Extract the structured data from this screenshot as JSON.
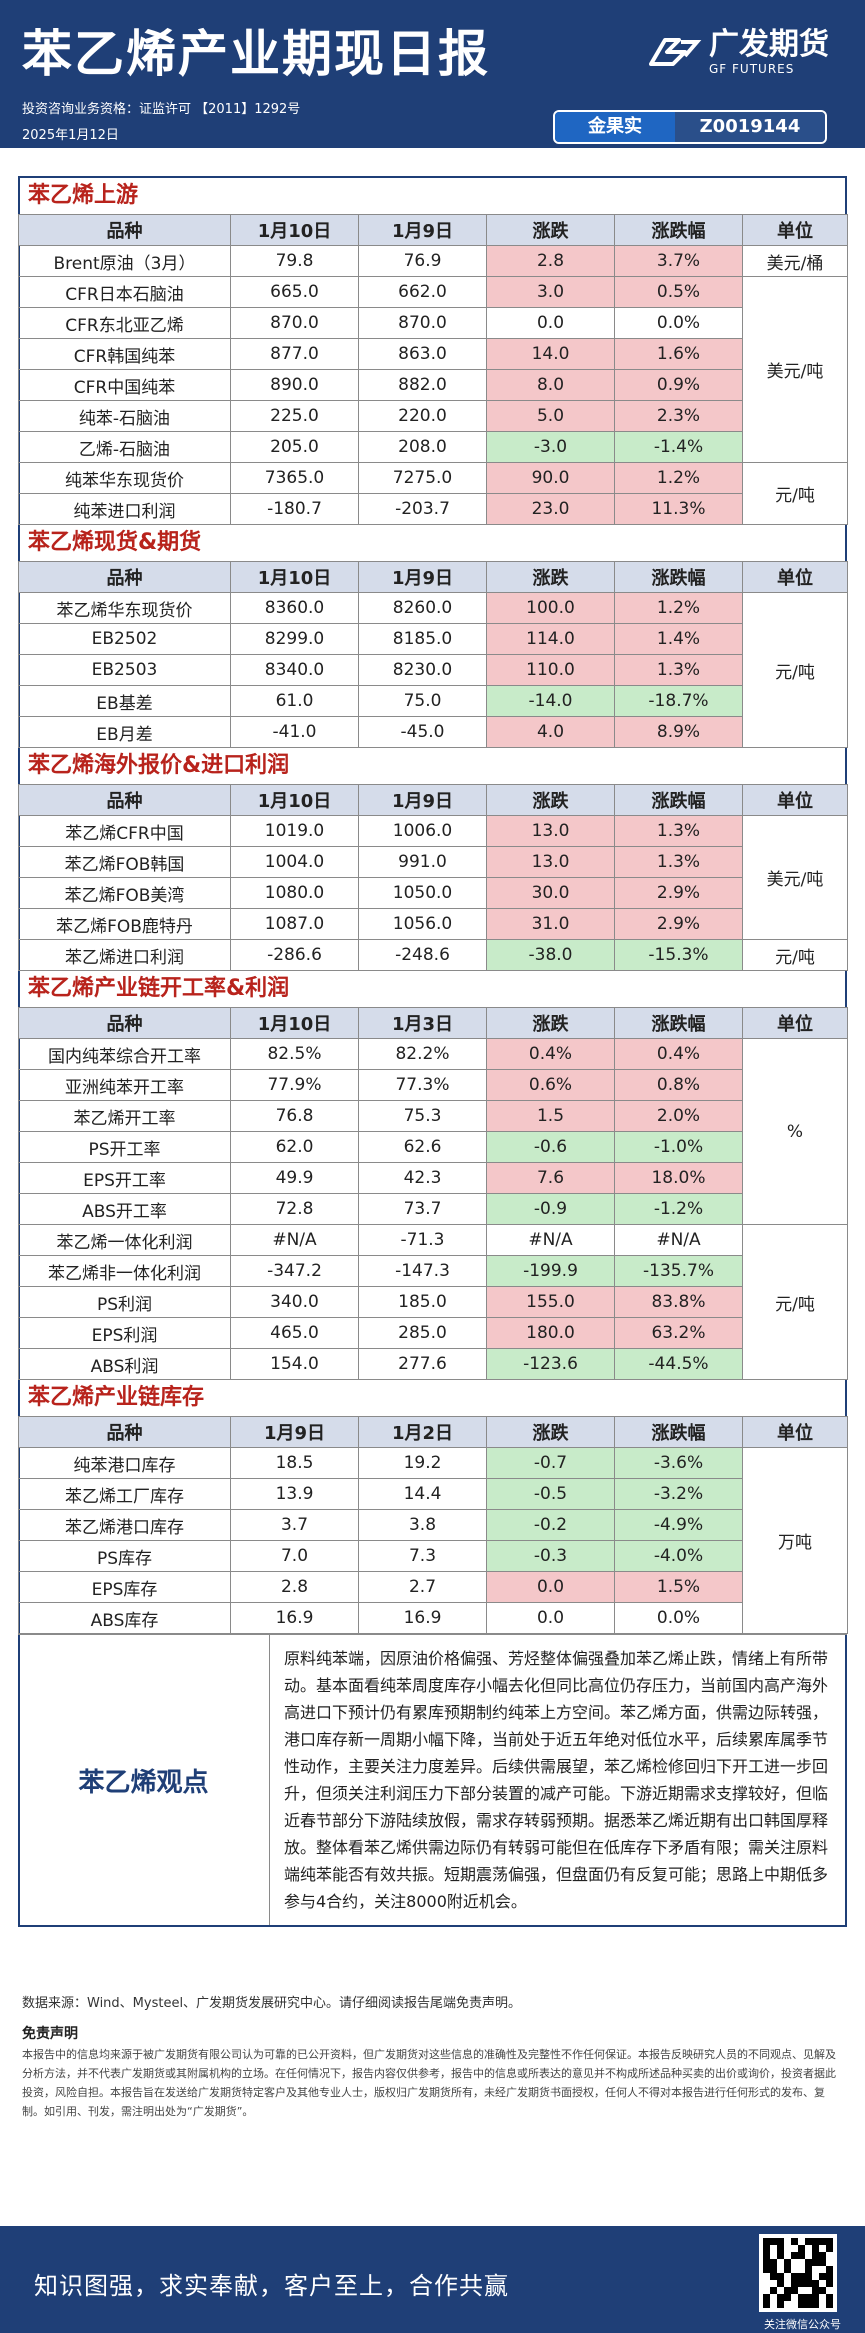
{
  "header": {
    "title": "苯乙烯产业期现日报",
    "license": "投资咨询业务资格：证监许可 【2011】1292号",
    "date": "2025年1月12日",
    "logo_name": "广发期货",
    "logo_en": "GF FUTURES",
    "analyst_name": "金果实",
    "analyst_no": "Z0019144"
  },
  "colors": {
    "brand": "#1f3f77",
    "accent_red": "#b8231c",
    "pos": "#f4c7c9",
    "neg": "#c8ebc9"
  },
  "sections": [
    {
      "title": "苯乙烯上游",
      "headers": [
        "品种",
        "1月10日",
        "1月9日",
        "涨跌",
        "涨跌幅",
        "单位"
      ],
      "rows": [
        {
          "name": "Brent原油（3月）",
          "c1": "79.8",
          "c2": "76.9",
          "chg": "2.8",
          "pct": "3.7%",
          "chg_t": "pos",
          "pct_t": "pos",
          "unit": "美元/桶",
          "span": 1
        },
        {
          "name": "CFR日本石脑油",
          "c1": "665.0",
          "c2": "662.0",
          "chg": "3.0",
          "pct": "0.5%",
          "chg_t": "pos",
          "pct_t": "pos",
          "unit": "美元/吨",
          "span": 6
        },
        {
          "name": "CFR东北亚乙烯",
          "c1": "870.0",
          "c2": "870.0",
          "chg": "0.0",
          "pct": "0.0%",
          "chg_t": "zero",
          "pct_t": "zero"
        },
        {
          "name": "CFR韩国纯苯",
          "c1": "877.0",
          "c2": "863.0",
          "chg": "14.0",
          "pct": "1.6%",
          "chg_t": "pos",
          "pct_t": "pos"
        },
        {
          "name": "CFR中国纯苯",
          "c1": "890.0",
          "c2": "882.0",
          "chg": "8.0",
          "pct": "0.9%",
          "chg_t": "pos",
          "pct_t": "pos"
        },
        {
          "name": "纯苯-石脑油",
          "c1": "225.0",
          "c2": "220.0",
          "chg": "5.0",
          "pct": "2.3%",
          "chg_t": "pos",
          "pct_t": "pos"
        },
        {
          "name": "乙烯-石脑油",
          "c1": "205.0",
          "c2": "208.0",
          "chg": "-3.0",
          "pct": "-1.4%",
          "chg_t": "neg",
          "pct_t": "neg"
        },
        {
          "name": "纯苯华东现货价",
          "c1": "7365.0",
          "c2": "7275.0",
          "chg": "90.0",
          "pct": "1.2%",
          "chg_t": "pos",
          "pct_t": "pos",
          "unit": "元/吨",
          "span": 2
        },
        {
          "name": "纯苯进口利润",
          "c1": "-180.7",
          "c2": "-203.7",
          "chg": "23.0",
          "pct": "11.3%",
          "chg_t": "pos",
          "pct_t": "pos"
        }
      ]
    },
    {
      "title": "苯乙烯现货&期货",
      "headers": [
        "品种",
        "1月10日",
        "1月9日",
        "涨跌",
        "涨跌幅",
        "单位"
      ],
      "rows": [
        {
          "name": "苯乙烯华东现货价",
          "c1": "8360.0",
          "c2": "8260.0",
          "chg": "100.0",
          "pct": "1.2%",
          "chg_t": "pos",
          "pct_t": "pos",
          "unit": "元/吨",
          "span": 5
        },
        {
          "name": "EB2502",
          "c1": "8299.0",
          "c2": "8185.0",
          "chg": "114.0",
          "pct": "1.4%",
          "chg_t": "pos",
          "pct_t": "pos"
        },
        {
          "name": "EB2503",
          "c1": "8340.0",
          "c2": "8230.0",
          "chg": "110.0",
          "pct": "1.3%",
          "chg_t": "pos",
          "pct_t": "pos"
        },
        {
          "name": "EB基差",
          "c1": "61.0",
          "c2": "75.0",
          "chg": "-14.0",
          "pct": "-18.7%",
          "chg_t": "neg",
          "pct_t": "neg"
        },
        {
          "name": "EB月差",
          "c1": "-41.0",
          "c2": "-45.0",
          "chg": "4.0",
          "pct": "8.9%",
          "chg_t": "pos",
          "pct_t": "pos"
        }
      ]
    },
    {
      "title": "苯乙烯海外报价&进口利润",
      "headers": [
        "品种",
        "1月10日",
        "1月9日",
        "涨跌",
        "涨跌幅",
        "单位"
      ],
      "rows": [
        {
          "name": "苯乙烯CFR中国",
          "c1": "1019.0",
          "c2": "1006.0",
          "chg": "13.0",
          "pct": "1.3%",
          "chg_t": "pos",
          "pct_t": "pos",
          "unit": "美元/吨",
          "span": 4
        },
        {
          "name": "苯乙烯FOB韩国",
          "c1": "1004.0",
          "c2": "991.0",
          "chg": "13.0",
          "pct": "1.3%",
          "chg_t": "pos",
          "pct_t": "pos"
        },
        {
          "name": "苯乙烯FOB美湾",
          "c1": "1080.0",
          "c2": "1050.0",
          "chg": "30.0",
          "pct": "2.9%",
          "chg_t": "pos",
          "pct_t": "pos"
        },
        {
          "name": "苯乙烯FOB鹿特丹",
          "c1": "1087.0",
          "c2": "1056.0",
          "chg": "31.0",
          "pct": "2.9%",
          "chg_t": "pos",
          "pct_t": "pos"
        },
        {
          "name": "苯乙烯进口利润",
          "c1": "-286.6",
          "c2": "-248.6",
          "chg": "-38.0",
          "pct": "-15.3%",
          "chg_t": "neg",
          "pct_t": "neg",
          "unit": "元/吨",
          "span": 1
        }
      ]
    },
    {
      "title": "苯乙烯产业链开工率&利润",
      "headers": [
        "品种",
        "1月10日",
        "1月3日",
        "涨跌",
        "涨跌幅",
        "单位"
      ],
      "rows": [
        {
          "name": "国内纯苯综合开工率",
          "c1": "82.5%",
          "c2": "82.2%",
          "chg": "0.4%",
          "pct": "0.4%",
          "chg_t": "pos",
          "pct_t": "pos",
          "unit": "%",
          "span": 6
        },
        {
          "name": "亚洲纯苯开工率",
          "c1": "77.9%",
          "c2": "77.3%",
          "chg": "0.6%",
          "pct": "0.8%",
          "chg_t": "pos",
          "pct_t": "pos"
        },
        {
          "name": "苯乙烯开工率",
          "c1": "76.8",
          "c2": "75.3",
          "chg": "1.5",
          "pct": "2.0%",
          "chg_t": "pos",
          "pct_t": "pos"
        },
        {
          "name": "PS开工率",
          "c1": "62.0",
          "c2": "62.6",
          "chg": "-0.6",
          "pct": "-1.0%",
          "chg_t": "neg",
          "pct_t": "neg"
        },
        {
          "name": "EPS开工率",
          "c1": "49.9",
          "c2": "42.3",
          "chg": "7.6",
          "pct": "18.0%",
          "chg_t": "pos",
          "pct_t": "pos"
        },
        {
          "name": "ABS开工率",
          "c1": "72.8",
          "c2": "73.7",
          "chg": "-0.9",
          "pct": "-1.2%",
          "chg_t": "neg",
          "pct_t": "neg"
        },
        {
          "name": "苯乙烯一体化利润",
          "c1": "#N/A",
          "c2": "-71.3",
          "chg": "#N/A",
          "pct": "#N/A",
          "chg_t": "zero",
          "pct_t": "zero",
          "unit": "元/吨",
          "span": 5
        },
        {
          "name": "苯乙烯非一体化利润",
          "c1": "-347.2",
          "c2": "-147.3",
          "chg": "-199.9",
          "pct": "-135.7%",
          "chg_t": "neg",
          "pct_t": "neg"
        },
        {
          "name": "PS利润",
          "c1": "340.0",
          "c2": "185.0",
          "chg": "155.0",
          "pct": "83.8%",
          "chg_t": "pos",
          "pct_t": "pos"
        },
        {
          "name": "EPS利润",
          "c1": "465.0",
          "c2": "285.0",
          "chg": "180.0",
          "pct": "63.2%",
          "chg_t": "pos",
          "pct_t": "pos"
        },
        {
          "name": "ABS利润",
          "c1": "154.0",
          "c2": "277.6",
          "chg": "-123.6",
          "pct": "-44.5%",
          "chg_t": "neg",
          "pct_t": "neg"
        }
      ]
    },
    {
      "title": "苯乙烯产业链库存",
      "headers": [
        "品种",
        "1月9日",
        "1月2日",
        "涨跌",
        "涨跌幅",
        "单位"
      ],
      "rows": [
        {
          "name": "纯苯港口库存",
          "c1": "18.5",
          "c2": "19.2",
          "chg": "-0.7",
          "pct": "-3.6%",
          "chg_t": "neg",
          "pct_t": "neg",
          "unit": "万吨",
          "span": 6
        },
        {
          "name": "苯乙烯工厂库存",
          "c1": "13.9",
          "c2": "14.4",
          "chg": "-0.5",
          "pct": "-3.2%",
          "chg_t": "neg",
          "pct_t": "neg"
        },
        {
          "name": "苯乙烯港口库存",
          "c1": "3.7",
          "c2": "3.8",
          "chg": "-0.2",
          "pct": "-4.9%",
          "chg_t": "neg",
          "pct_t": "neg"
        },
        {
          "name": "PS库存",
          "c1": "7.0",
          "c2": "7.3",
          "chg": "-0.3",
          "pct": "-4.0%",
          "chg_t": "neg",
          "pct_t": "neg"
        },
        {
          "name": "EPS库存",
          "c1": "2.8",
          "c2": "2.7",
          "chg": "0.0",
          "pct": "1.5%",
          "chg_t": "pos",
          "pct_t": "pos"
        },
        {
          "name": "ABS库存",
          "c1": "16.9",
          "c2": "16.9",
          "chg": "0.0",
          "pct": "0.0%",
          "chg_t": "zero",
          "pct_t": "zero"
        }
      ]
    }
  ],
  "view": {
    "label": "苯乙烯观点",
    "text": "原料纯苯端，因原油价格偏强、芳烃整体偏强叠加苯乙烯止跌，情绪上有所带动。基本面看纯苯周度库存小幅去化但同比高位仍存压力，当前国内高产海外高进口下预计仍有累库预期制约纯苯上方空间。苯乙烯方面，供需边际转强，港口库存新一周期小幅下降，当前处于近五年绝对低位水平，后续累库属季节性动作，主要关注力度差异。后续供需展望，苯乙烯检修回归下开工进一步回升，但须关注利润压力下部分装置的减产可能。下游近期需求支撑较好，但临近春节部分下游陆续放假，需求存转弱预期。据悉苯乙烯近期有出口韩国厚释放。整体看苯乙烯供需边际仍有转弱可能但在低库存下矛盾有限；需关注原料端纯苯能否有效共振。短期震荡偏强，但盘面仍有反复可能；思路上中期低多参与4合约，关注8000附近机会。"
  },
  "source": "数据来源：Wind、Mysteel、广发期货发展研究中心。请仔细阅读报告尾端免责声明。",
  "disclaimer_title": "免责声明",
  "disclaimer": "本报告中的信息均来源于被广发期货有限公司认为可靠的已公开资料，但广发期货对这些信息的准确性及完整性不作任何保证。本报告反映研究人员的不同观点、见解及分析方法，并不代表广发期货或其附属机构的立场。在任何情况下，报告内容仅供参考，报告中的信息或所表达的意见并不构成所述品种买卖的出价或询价，投资者据此投资，风险自担。本报告旨在发送给广发期货特定客户及其他专业人士，版权归广发期货所有，未经广发期货书面授权，任何人不得对本报告进行任何形式的发布、复制。如引用、刊发，需注明出处为“广发期货”。",
  "slogan": "知识图强，求实奉献，客户至上，合作共赢",
  "qr_caption": "关注微信公众号"
}
